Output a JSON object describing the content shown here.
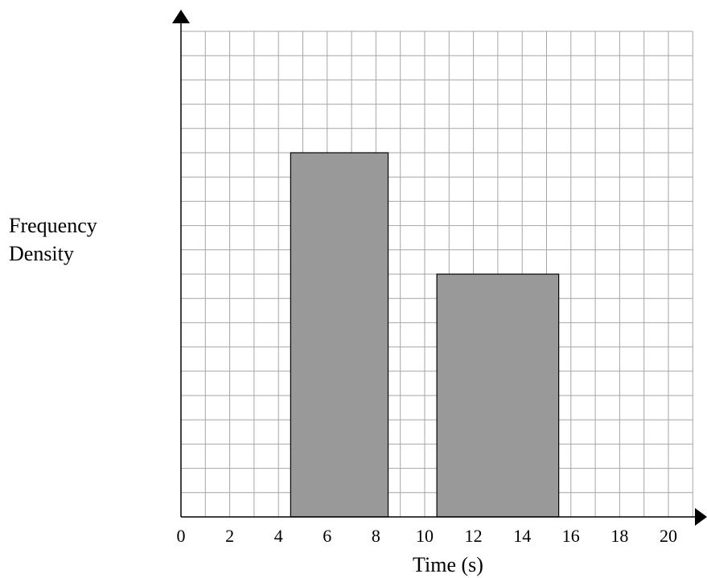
{
  "chart_data": {
    "type": "bar",
    "title": "",
    "xlabel": "Time (s)",
    "ylabel_lines": [
      "Frequency",
      "Density"
    ],
    "x_ticks": [
      0,
      2,
      4,
      6,
      8,
      10,
      12,
      14,
      16,
      18,
      20
    ],
    "x_tick_labels": [
      "0",
      "2",
      "4",
      "6",
      "8",
      "10",
      "12",
      "14",
      "16",
      "18",
      "20"
    ],
    "xlim": [
      0,
      21
    ],
    "ylim": [
      0,
      20
    ],
    "grid": true,
    "bars": [
      {
        "x_start": 4.5,
        "x_end": 8.5,
        "value": 15
      },
      {
        "x_start": 10.5,
        "x_end": 15.5,
        "value": 10
      }
    ],
    "colors": {
      "bar_fill": "#999999",
      "bar_stroke": "#000000",
      "grid": "#a6a6a6",
      "axis": "#000000"
    }
  }
}
